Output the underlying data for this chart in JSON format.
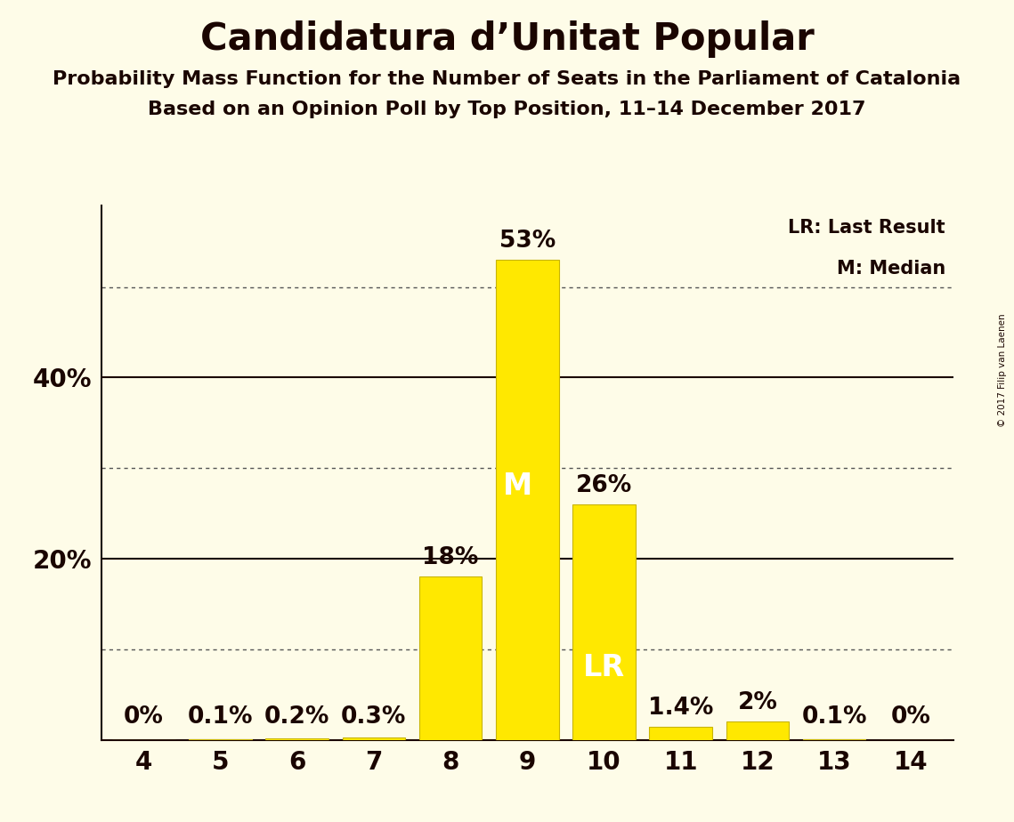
{
  "title": "Candidatura d’Unitat Popular",
  "subtitle1": "Probability Mass Function for the Number of Seats in the Parliament of Catalonia",
  "subtitle2": "Based on an Opinion Poll by Top Position, 11–14 December 2017",
  "copyright": "© 2017 Filip van Laenen",
  "categories": [
    4,
    5,
    6,
    7,
    8,
    9,
    10,
    11,
    12,
    13,
    14
  ],
  "values": [
    0.0,
    0.1,
    0.2,
    0.3,
    18.0,
    53.0,
    26.0,
    1.4,
    2.0,
    0.1,
    0.0
  ],
  "bar_color": "#FFE800",
  "bar_edge_color": "#c8b400",
  "background_color": "#FEFCE8",
  "text_color": "#1a0500",
  "label_above_color": "#1a0500",
  "label_inside_color": "#FFFFFF",
  "median_seat": 9,
  "lr_seat": 10,
  "ylim": [
    0,
    59
  ],
  "yticks_solid": [
    20,
    40
  ],
  "yticks_dotted": [
    10,
    30,
    50
  ],
  "legend_text": [
    "LR: Last Result",
    "M: Median"
  ],
  "title_fontsize": 30,
  "subtitle_fontsize": 16,
  "tick_fontsize": 20,
  "bar_label_fontsize": 19,
  "inside_label_fontsize": 24,
  "legend_fontsize": 15
}
